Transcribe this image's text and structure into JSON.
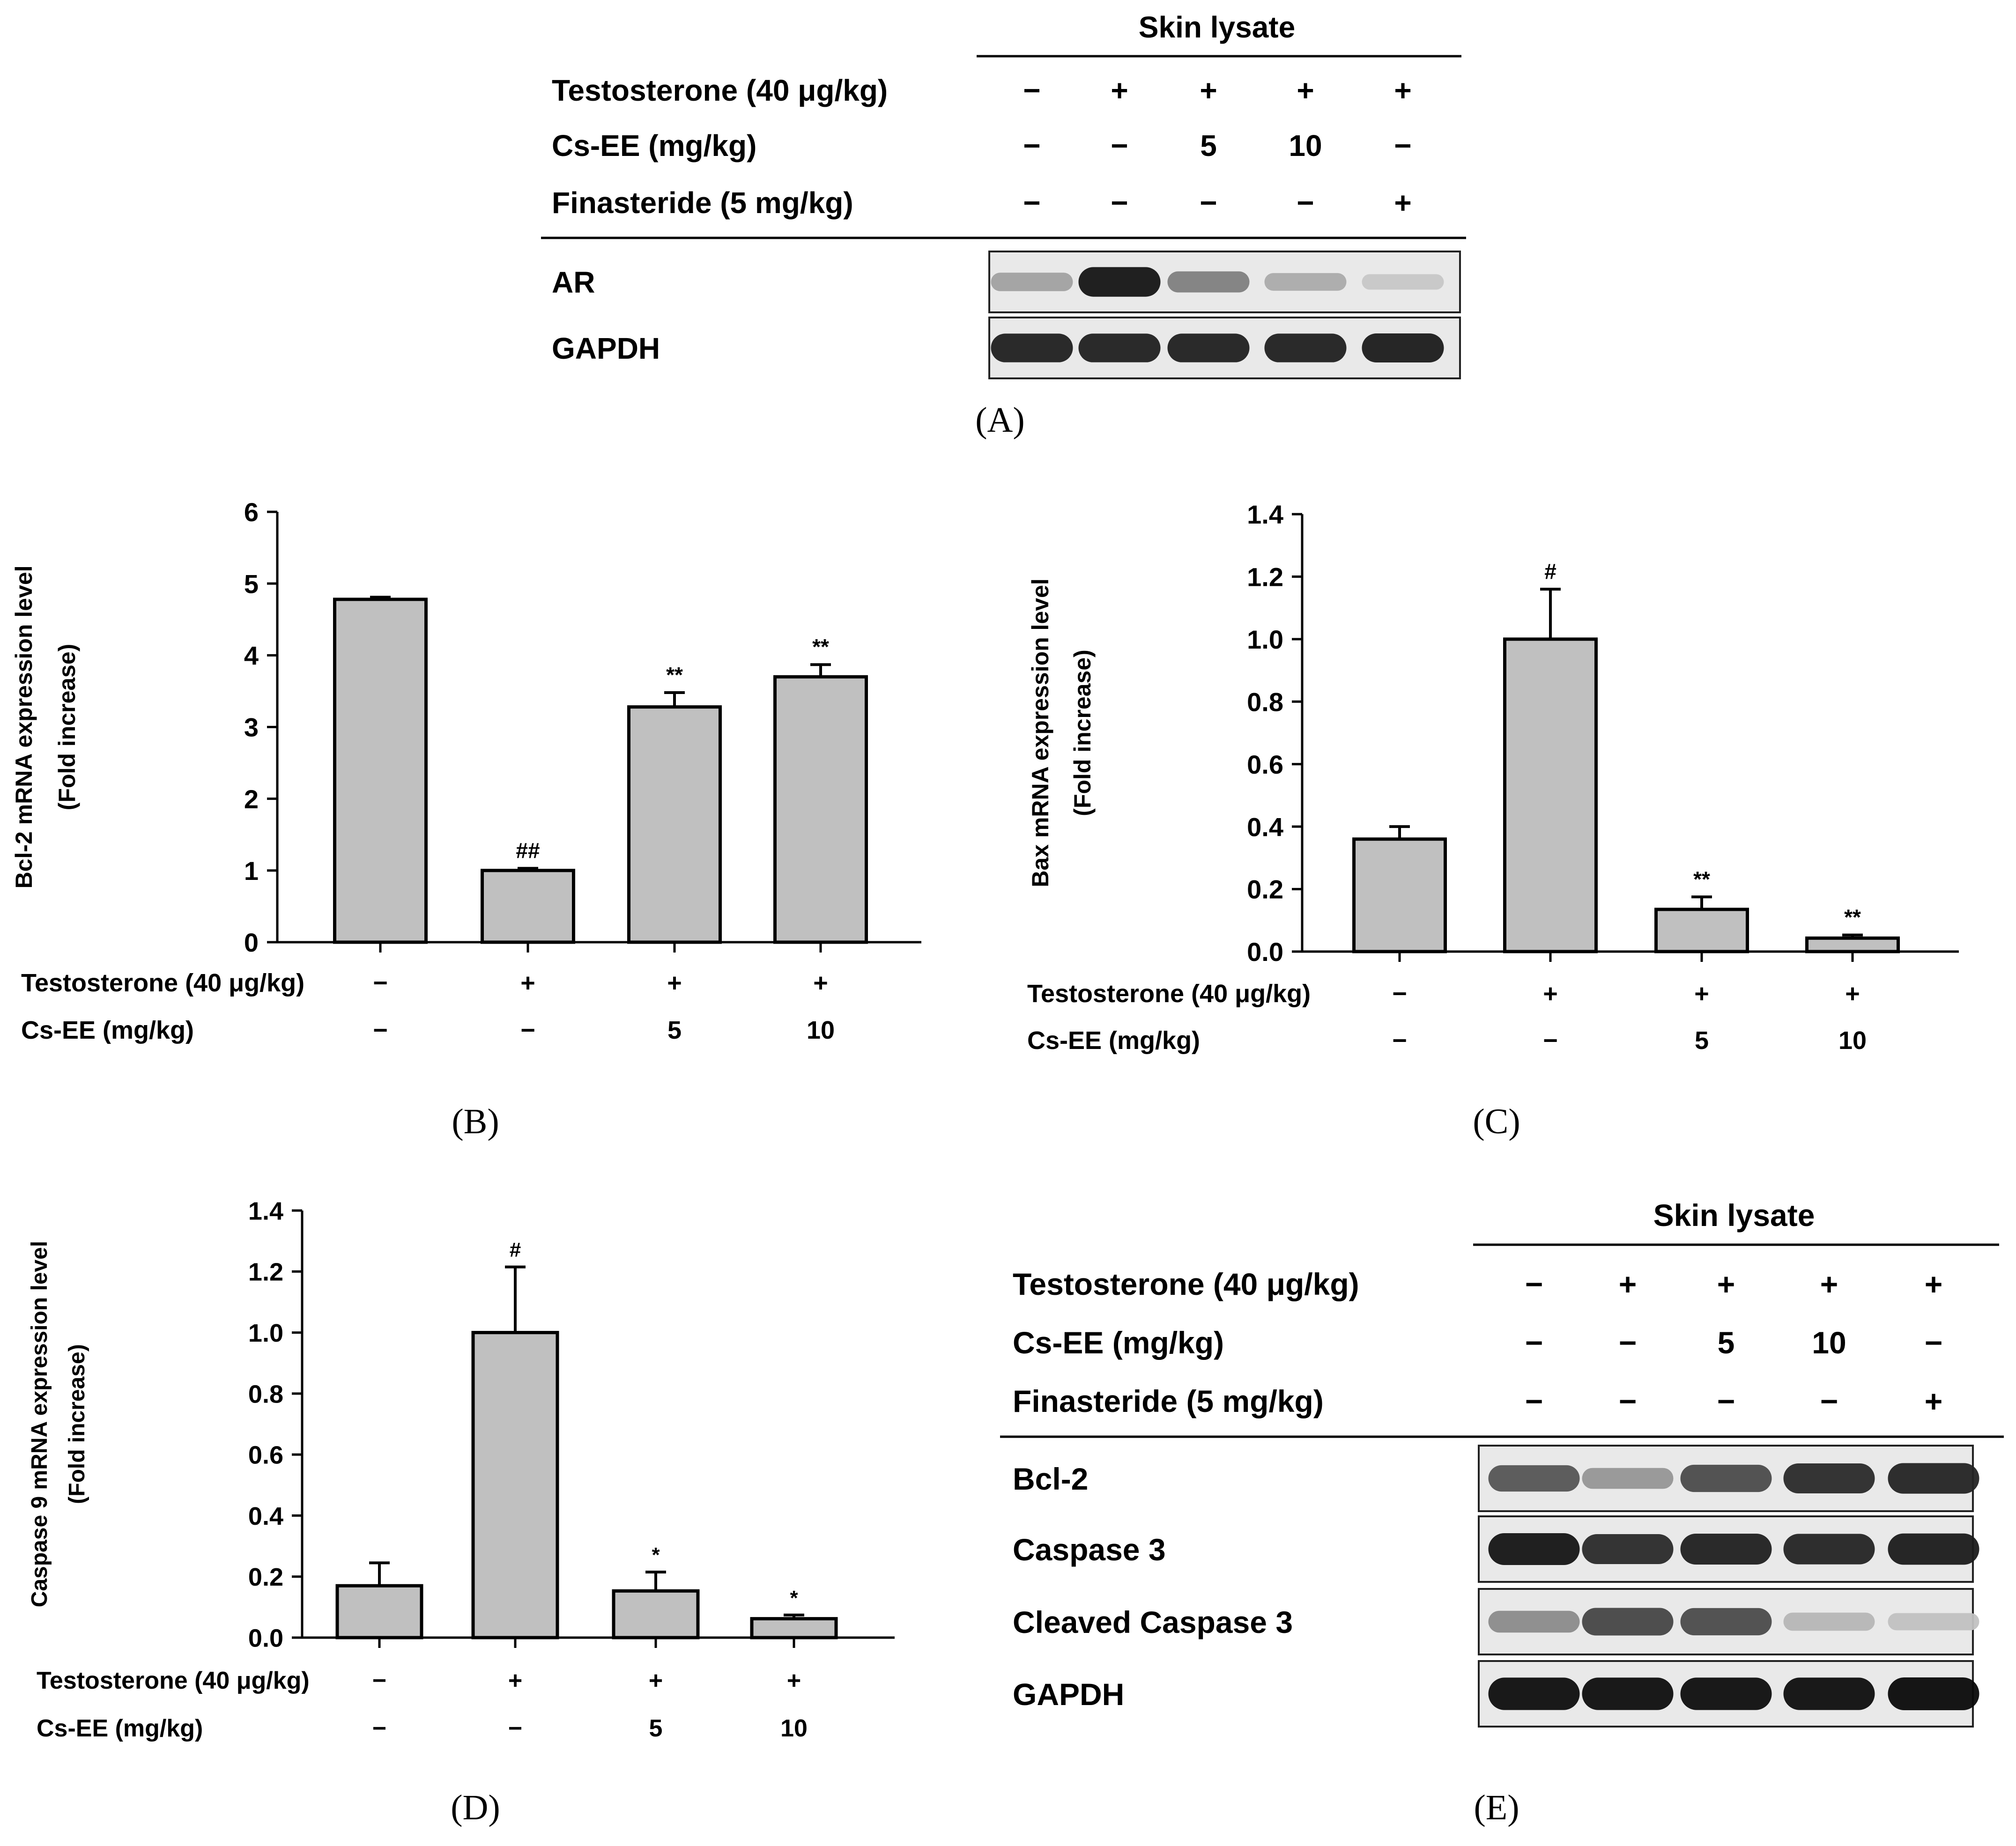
{
  "blot_A": {
    "header": "Skin lysate",
    "treatments": [
      {
        "label": "Testosterone (40 μg/kg)",
        "values": [
          "−",
          "+",
          "+",
          "+",
          "+"
        ]
      },
      {
        "label": "Cs-EE (mg/kg)",
        "values": [
          "−",
          "−",
          "5",
          "10",
          "−"
        ]
      },
      {
        "label": "Finasteride (5 mg/kg)",
        "values": [
          "−",
          "−",
          "−",
          "−",
          "+"
        ]
      }
    ],
    "bands": [
      {
        "label": "AR",
        "intensity": [
          0.3,
          0.95,
          0.45,
          0.25,
          0.12
        ]
      },
      {
        "label": "GAPDH",
        "intensity": [
          0.9,
          0.9,
          0.9,
          0.9,
          0.92
        ]
      }
    ],
    "caption": "(A)"
  },
  "blot_E": {
    "header": "Skin lysate",
    "treatments": [
      {
        "label": "Testosterone (40 μg/kg)",
        "values": [
          "−",
          "+",
          "+",
          "+",
          "+"
        ]
      },
      {
        "label": "Cs-EE (mg/kg)",
        "values": [
          "−",
          "−",
          "5",
          "10",
          "−"
        ]
      },
      {
        "label": "Finasteride (5 mg/kg)",
        "values": [
          "−",
          "−",
          "−",
          "−",
          "+"
        ]
      }
    ],
    "bands": [
      {
        "label": "Bcl-2",
        "intensity": [
          0.65,
          0.35,
          0.7,
          0.85,
          0.88
        ]
      },
      {
        "label": "Caspase 3",
        "intensity": [
          0.95,
          0.85,
          0.9,
          0.88,
          0.92
        ]
      },
      {
        "label": "Cleaved Caspase 3",
        "intensity": [
          0.4,
          0.72,
          0.7,
          0.2,
          0.15
        ]
      },
      {
        "label": "GAPDH",
        "intensity": [
          0.98,
          0.98,
          0.98,
          0.98,
          1.0
        ]
      }
    ],
    "caption": "(E)"
  },
  "chart_data": [
    {
      "type": "bar",
      "panel": "B",
      "caption": "(B)",
      "ylabel": [
        "Bcl-2 mRNA expression level",
        "(Fold increase)"
      ],
      "ylim": [
        0,
        6
      ],
      "yticks": [
        "0",
        "1",
        "2",
        "3",
        "4",
        "5",
        "6"
      ],
      "values": [
        4.78,
        1.0,
        3.28,
        3.7
      ],
      "errors": [
        0.03,
        0.03,
        0.2,
        0.17
      ],
      "marks": [
        "",
        "##",
        "**",
        "**"
      ],
      "treatments": [
        {
          "label": "Testosterone (40 μg/kg)",
          "values": [
            "−",
            "+",
            "+",
            "+"
          ]
        },
        {
          "label": "Cs-EE (mg/kg)",
          "values": [
            "−",
            "−",
            "5",
            "10"
          ]
        }
      ],
      "bar_color": "#c0c0c0"
    },
    {
      "type": "bar",
      "panel": "C",
      "caption": "(C)",
      "ylabel": [
        "Bax mRNA expression level",
        "(Fold increase)"
      ],
      "ylim": [
        0,
        1.4
      ],
      "yticks": [
        "0.0",
        "0.2",
        "0.4",
        "0.6",
        "0.8",
        "1.0",
        "1.2",
        "1.4"
      ],
      "values": [
        0.36,
        1.0,
        0.135,
        0.043
      ],
      "errors": [
        0.04,
        0.16,
        0.04,
        0.01
      ],
      "marks": [
        "",
        "#",
        "**",
        "**"
      ],
      "treatments": [
        {
          "label": "Testosterone (40 μg/kg)",
          "values": [
            "−",
            "+",
            "+",
            "+"
          ]
        },
        {
          "label": "Cs-EE (mg/kg)",
          "values": [
            "−",
            "−",
            "5",
            "10"
          ]
        }
      ],
      "bar_color": "#c0c0c0"
    },
    {
      "type": "bar",
      "panel": "D",
      "caption": "(D)",
      "ylabel": [
        "Caspase 9 mRNA expression level",
        "(Fold increase)"
      ],
      "ylim": [
        0,
        1.4
      ],
      "yticks": [
        "0.0",
        "0.2",
        "0.4",
        "0.6",
        "0.8",
        "1.0",
        "1.2",
        "1.4"
      ],
      "values": [
        0.17,
        1.0,
        0.153,
        0.062
      ],
      "errors": [
        0.075,
        0.215,
        0.062,
        0.012
      ],
      "marks": [
        "",
        "#",
        "*",
        "*"
      ],
      "treatments": [
        {
          "label": "Testosterone (40 μg/kg)",
          "values": [
            "−",
            "+",
            "+",
            "+"
          ]
        },
        {
          "label": "Cs-EE (mg/kg)",
          "values": [
            "−",
            "−",
            "5",
            "10"
          ]
        }
      ],
      "bar_color": "#c0c0c0"
    }
  ]
}
